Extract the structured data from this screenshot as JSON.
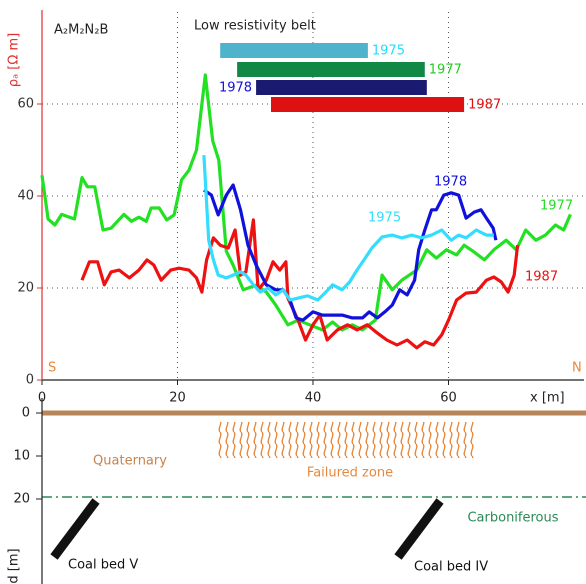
{
  "chart_data": {
    "type": "line",
    "label": "A₂M₂N₂B",
    "y_label": "ρₐ [Ω m]",
    "x_label": "x [m]",
    "left_end": "S",
    "right_end": "N",
    "belt_title": "Low resistivity belt",
    "xlim": [
      0,
      80
    ],
    "ylim": [
      0,
      80
    ],
    "xticks": [
      0,
      20,
      40,
      60
    ],
    "yticks": [
      0,
      20,
      40,
      60
    ],
    "grid": true,
    "belts": [
      {
        "name": "1975",
        "color": "#4fb3cc",
        "text_color": "#22ddff",
        "range": [
          26.3,
          48.1
        ]
      },
      {
        "name": "1977",
        "color": "#118844",
        "text_color": "#22cc22",
        "range": [
          28.8,
          56.5
        ]
      },
      {
        "name": "1978",
        "color": "#1a1a70",
        "text_color": "#1111dd",
        "range": [
          31.6,
          56.8
        ]
      },
      {
        "name": "1987",
        "color": "#dd1111",
        "text_color": "#dd1111",
        "range": [
          33.8,
          62.3
        ]
      }
    ],
    "series": [
      {
        "name": "1977",
        "color": "#22e022",
        "x": [
          0,
          0.9,
          1.9,
          2.9,
          4.8,
          5.9,
          6.7,
          7.8,
          9,
          10.2,
          12.1,
          13.2,
          14.3,
          15.4,
          16.1,
          17.3,
          18.4,
          19.5,
          20.6,
          21.7,
          22.8,
          24.1,
          25.2,
          26.1,
          27.2,
          28.2,
          29.7,
          31.6,
          33.1,
          34.5,
          36.3,
          37.8,
          39.5,
          41.4,
          42.9,
          44.3,
          45.8,
          47.3,
          49.2,
          50.2,
          51.7,
          53.1,
          55.3,
          56.8,
          58.2,
          59.7,
          61.2,
          62.3,
          63.8,
          65.3,
          66.7,
          68.5,
          70,
          71.4,
          72.9,
          74.3,
          75.8,
          77,
          78
        ],
        "values": [
          44.5,
          35,
          33.7,
          36,
          35,
          44,
          42,
          42,
          32.6,
          33,
          36,
          34.5,
          35.4,
          34.5,
          37.4,
          37.4,
          34.8,
          35.9,
          43.5,
          45.6,
          50,
          66.3,
          52,
          47.8,
          28,
          25,
          19.6,
          20.6,
          19.1,
          16.3,
          12,
          13,
          12,
          10.9,
          12.6,
          10.9,
          12,
          10.9,
          13,
          22.8,
          19.6,
          21.7,
          23.9,
          28.3,
          26.5,
          28.3,
          27.2,
          29.3,
          27.8,
          26.1,
          28.3,
          30.4,
          28.3,
          32.6,
          30.4,
          31.5,
          33.7,
          32.6,
          36
        ]
      },
      {
        "name": "1987",
        "color": "#ee1111",
        "x": [
          5.9,
          7,
          8.2,
          9.2,
          10.2,
          11.4,
          12.9,
          14.3,
          15.5,
          16.5,
          17.6,
          19,
          20.2,
          21.7,
          22.8,
          23.6,
          24.3,
          25.3,
          26.3,
          27.5,
          28.5,
          29.3,
          30.1,
          31.2,
          31.9,
          33.1,
          34.1,
          35.1,
          36,
          36.3,
          37.8,
          38.9,
          40,
          41,
          42.1,
          43.6,
          45.1,
          46.5,
          48,
          49.5,
          50.9,
          52.4,
          53.9,
          55.3,
          56.5,
          57.8,
          59,
          60,
          61.2,
          62.6,
          64.1,
          65.6,
          66.7,
          67.8,
          68.8,
          69.7,
          70.2
        ],
        "values": [
          21.7,
          25.7,
          25.7,
          20.7,
          23.5,
          23.9,
          22.2,
          23.9,
          26.1,
          25,
          21.7,
          23.9,
          24.3,
          23.9,
          22.2,
          19.1,
          26.1,
          30.9,
          29.3,
          28.7,
          32.6,
          22.8,
          23.5,
          34.8,
          19.6,
          21.7,
          25.7,
          23.9,
          25.7,
          17.8,
          13,
          8.7,
          12,
          14.1,
          8.7,
          10.9,
          12,
          10.9,
          12,
          10.2,
          8.7,
          7.6,
          8.7,
          7,
          8.3,
          7.6,
          9.8,
          13,
          17.4,
          18.9,
          19.1,
          21.7,
          22.4,
          21.3,
          19.1,
          22.8,
          29.3
        ]
      },
      {
        "name": "1978",
        "color": "#1111dd",
        "x": [
          23.9,
          25,
          26,
          27.2,
          28.2,
          29.3,
          30.4,
          31.6,
          33.1,
          34.5,
          35.6,
          36.6,
          37.5,
          38.5,
          40,
          41.4,
          42.9,
          44.3,
          45.8,
          47.3,
          48.3,
          49.5,
          50.6,
          51.7,
          52.8,
          53.9,
          55,
          55.6,
          56.5,
          57.5,
          58.2,
          59.3,
          60.4,
          61.5,
          62.6,
          63.8,
          64.8,
          65.6,
          66.6,
          67
        ],
        "values": [
          41.3,
          40.2,
          35.9,
          40.2,
          42.4,
          37,
          29.3,
          25,
          20.7,
          19.6,
          19.6,
          17.4,
          13.5,
          13,
          14.8,
          14.1,
          14.1,
          14.1,
          13.5,
          13.5,
          14.8,
          13.5,
          14.8,
          16.3,
          19.6,
          18.5,
          21.7,
          28.3,
          32.6,
          37,
          37,
          40.2,
          40.7,
          40.2,
          35.2,
          36.5,
          37,
          35.2,
          33,
          30.4
        ]
      },
      {
        "name": "1975",
        "color": "#33ddff",
        "x": [
          23.9,
          24.6,
          25.3,
          26,
          27.2,
          28.2,
          29.3,
          30.1,
          31.2,
          32.2,
          33.4,
          34.5,
          35.6,
          36.6,
          37.8,
          39.2,
          40.7,
          41.9,
          42.9,
          44.3,
          45.4,
          46.5,
          47.7,
          48.7,
          50.2,
          51.7,
          53.1,
          54.6,
          56,
          57.5,
          59,
          60.4,
          61.5,
          62.6,
          64.1,
          65.6,
          66.7
        ],
        "values": [
          48.9,
          30.4,
          26.1,
          22.8,
          22.2,
          22.8,
          23.5,
          22.8,
          20.7,
          19.1,
          20,
          18.5,
          19.6,
          17.4,
          17.8,
          18.3,
          17.4,
          19.1,
          20.7,
          19.6,
          21.3,
          23.9,
          26.5,
          28.7,
          31.1,
          31.5,
          30.9,
          31.5,
          30.9,
          31.5,
          32.6,
          30.4,
          31.5,
          30.9,
          32.6,
          31.5,
          31.5
        ]
      }
    ]
  },
  "section": {
    "ylim": [
      0,
      40
    ],
    "yticks": [
      0,
      10,
      20
    ],
    "y_label": "d [m]",
    "labels": [
      "Quaternary",
      "Failured zone",
      "Carboniferous",
      "Coal bed V",
      "Coal bed IV"
    ]
  }
}
